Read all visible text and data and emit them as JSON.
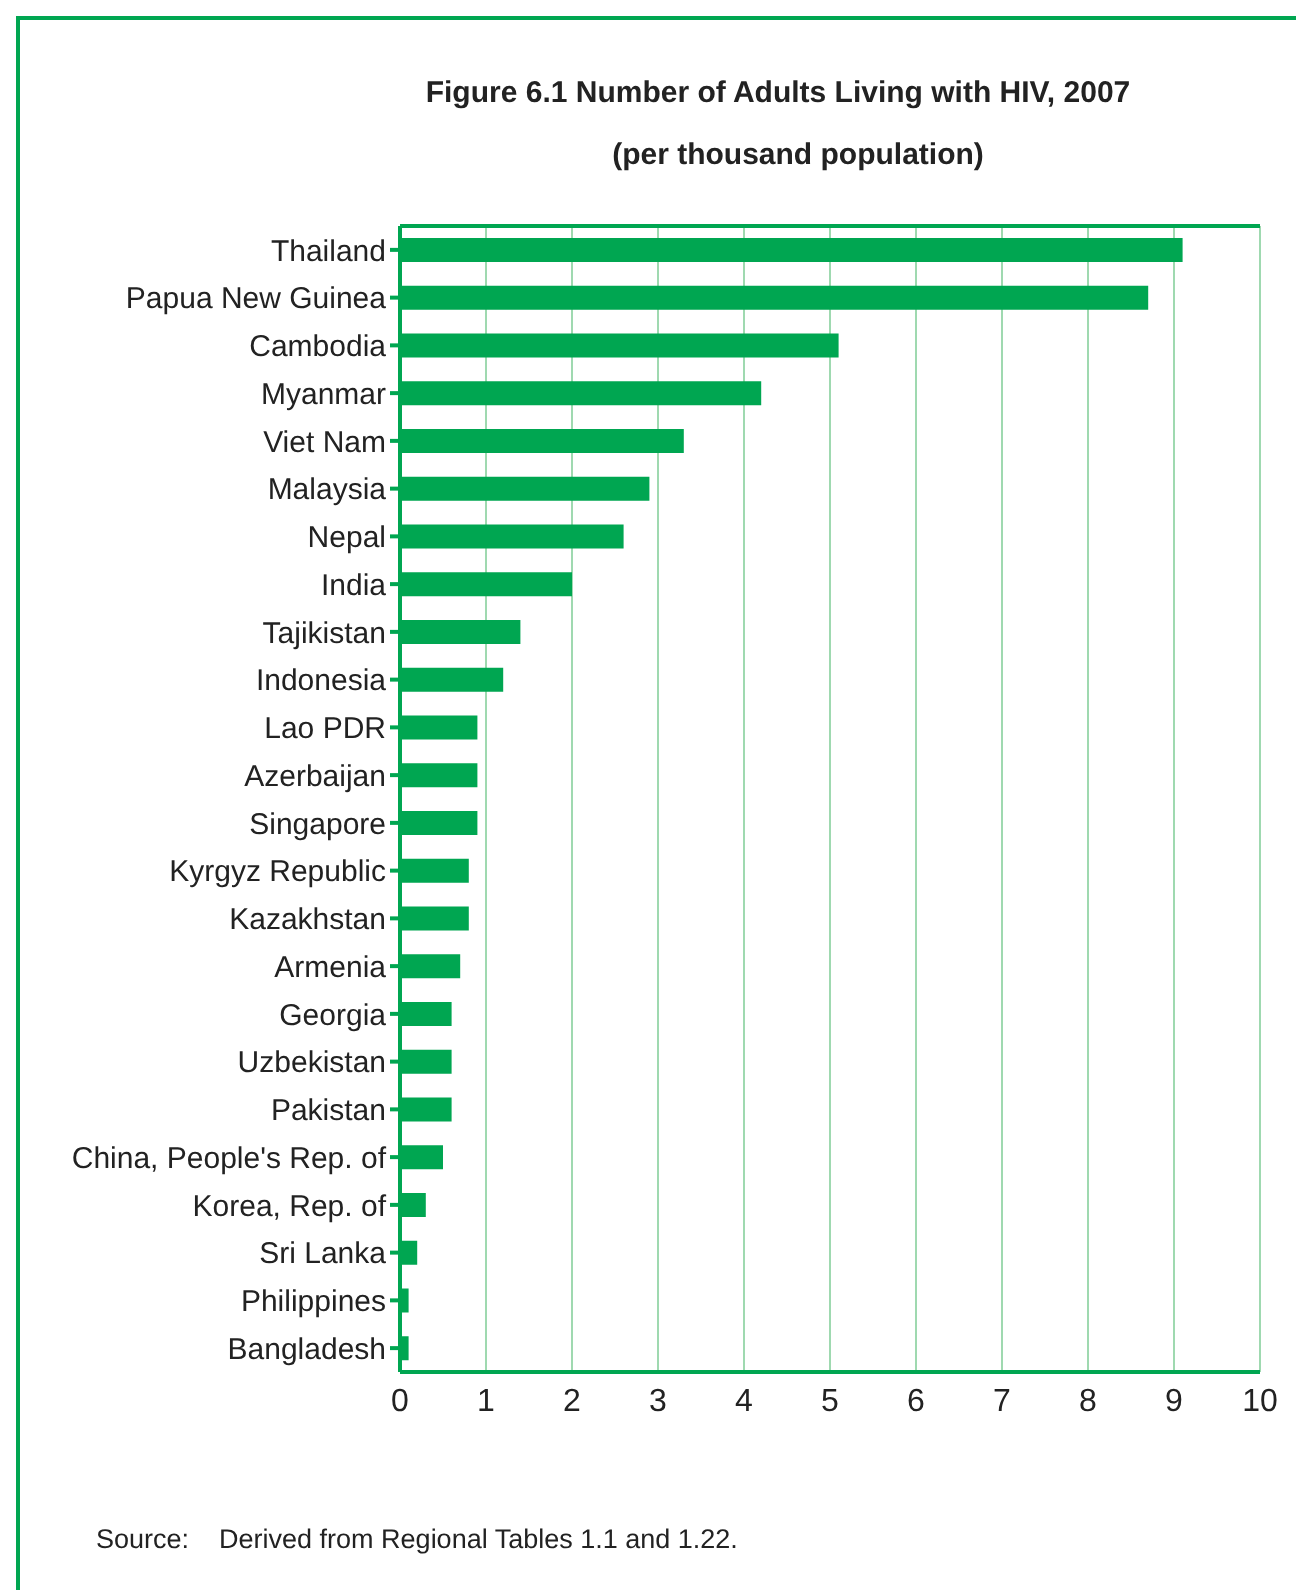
{
  "chart_data": {
    "type": "bar",
    "orientation": "horizontal",
    "title": "Figure 6.1  Number of Adults Living with HIV, 2007",
    "subtitle": "(per thousand population)",
    "categories": [
      "Thailand",
      "Papua New Guinea",
      "Cambodia",
      "Myanmar",
      "Viet Nam",
      "Malaysia",
      "Nepal",
      "India",
      "Tajikistan",
      "Indonesia",
      "Lao PDR",
      "Azerbaijan",
      "Singapore",
      "Kyrgyz Republic",
      "Kazakhstan",
      "Armenia",
      "Georgia",
      "Uzbekistan",
      "Pakistan",
      "China, People's Rep. of",
      "Korea, Rep. of",
      "Sri Lanka",
      "Philippines",
      "Bangladesh"
    ],
    "values": [
      9.1,
      8.7,
      5.1,
      4.2,
      3.3,
      2.9,
      2.6,
      2.0,
      1.4,
      1.2,
      0.9,
      0.9,
      0.9,
      0.8,
      0.8,
      0.7,
      0.6,
      0.6,
      0.6,
      0.5,
      0.3,
      0.2,
      0.1,
      0.1
    ],
    "color": "#00a651",
    "xlim": [
      0,
      10
    ],
    "xticks": [
      0,
      1,
      2,
      3,
      4,
      5,
      6,
      7,
      8,
      9,
      10
    ],
    "grid": "x",
    "annotations": [
      "Source:    Derived from Regional Tables 1.1 and 1.22."
    ]
  }
}
